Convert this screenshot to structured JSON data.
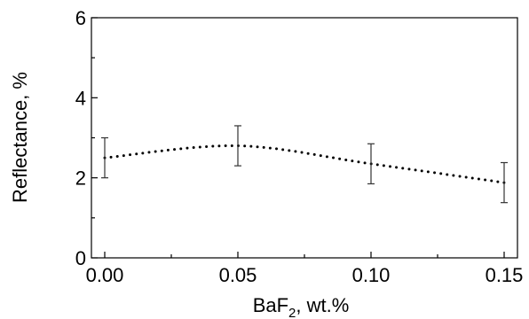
{
  "chart_data": {
    "type": "line",
    "x": [
      0.0,
      0.05,
      0.1,
      0.15
    ],
    "values": [
      2.5,
      2.8,
      2.35,
      1.88
    ],
    "errors": [
      0.5,
      0.5,
      0.5,
      0.5
    ],
    "curve": "smooth dotted",
    "xlabel": "BaF",
    "xlabel_sub": "2",
    "xlabel_unit": ", wt.%",
    "ylabel": "Reflectance, %",
    "xlim": [
      -0.005,
      0.155
    ],
    "ylim": [
      0,
      6
    ],
    "x_ticks": [
      "0.00",
      "0.05",
      "0.10",
      "0.15"
    ],
    "y_ticks": [
      "0",
      "2",
      "4",
      "6"
    ],
    "grid": false,
    "legend": "none"
  }
}
